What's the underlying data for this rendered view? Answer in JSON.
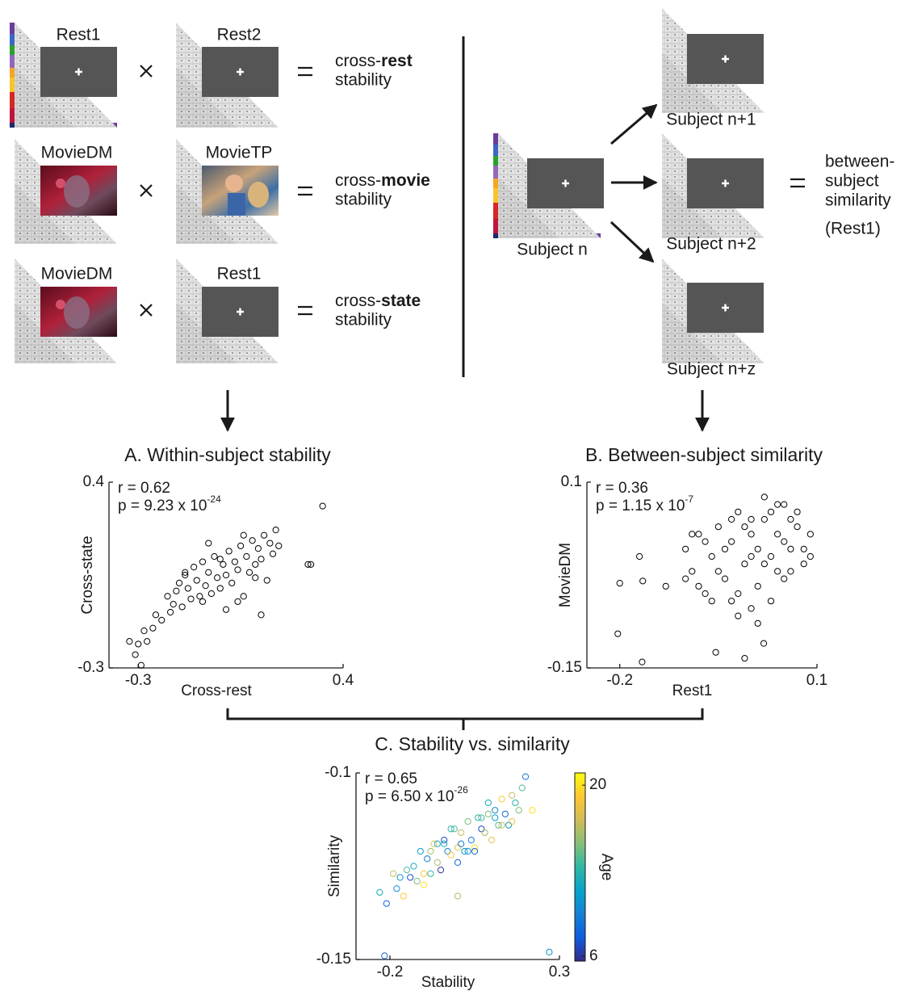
{
  "diagram": {
    "rows": [
      {
        "left": "Rest1",
        "right": "Rest2",
        "result": {
          "prefix": "cross-",
          "bold": "rest",
          "suffix": "stability"
        }
      },
      {
        "left": "MovieDM",
        "right": "MovieTP",
        "result": {
          "prefix": "cross-",
          "bold": "movie",
          "suffix": "stability"
        }
      },
      {
        "left": "MovieDM",
        "right": "Rest1",
        "result": {
          "prefix": "cross-",
          "bold": "state",
          "suffix": "stability"
        }
      }
    ],
    "between": {
      "center": "Subject n",
      "targets": [
        "Subject n+1",
        "Subject n+2",
        "Subject n+z"
      ],
      "result": [
        "between-",
        "subject",
        "similarity",
        "(Rest1)"
      ]
    }
  },
  "chart_data": [
    {
      "type": "scatter",
      "title": "A. Within-subject stability",
      "xlabel": "Cross-rest",
      "ylabel": "Cross-state",
      "annotation": {
        "r": "r = 0.62",
        "p": "p = 9.23 x 10",
        "p_exp": "-24"
      },
      "xlim": [
        -0.4,
        0.4
      ],
      "xticks": [
        -0.3,
        0.4
      ],
      "ylim": [
        -0.3,
        0.4
      ],
      "yticks": [
        -0.3,
        0.4
      ],
      "color": "#000000",
      "x": [
        -0.33,
        -0.31,
        -0.3,
        -0.28,
        -0.27,
        -0.25,
        -0.24,
        -0.22,
        -0.2,
        -0.19,
        -0.18,
        -0.17,
        -0.16,
        -0.15,
        -0.14,
        -0.13,
        -0.12,
        -0.11,
        -0.1,
        -0.09,
        -0.08,
        -0.07,
        -0.06,
        -0.05,
        -0.04,
        -0.03,
        -0.02,
        -0.01,
        0,
        0.01,
        0.02,
        0.03,
        0.04,
        0.05,
        0.06,
        0.07,
        0.08,
        0.09,
        0.1,
        0.11,
        0.12,
        0.13,
        0.14,
        0.15,
        0.16,
        0.17,
        0.18,
        -0.14,
        -0.08,
        -0.02,
        0.04,
        0.1,
        -0.06,
        0.0,
        0.06,
        0.12,
        0.28,
        0.29,
        0.33,
        -0.29
      ],
      "values": [
        -0.2,
        -0.25,
        -0.21,
        -0.16,
        -0.2,
        -0.15,
        -0.1,
        -0.12,
        -0.03,
        -0.09,
        -0.06,
        -0.01,
        0.02,
        -0.07,
        0.05,
        0.0,
        -0.04,
        0.08,
        0.03,
        -0.03,
        0.1,
        0.01,
        0.06,
        -0.02,
        0.12,
        0.04,
        0.0,
        0.09,
        0.05,
        0.14,
        0.02,
        0.1,
        0.07,
        0.16,
        -0.03,
        0.12,
        0.06,
        0.18,
        0.09,
        0.15,
        0.11,
        0.2,
        0.03,
        0.17,
        0.13,
        0.22,
        0.16,
        0.06,
        -0.05,
        0.11,
        -0.05,
        0.04,
        0.17,
        -0.08,
        0.2,
        -0.1,
        0.09,
        0.09,
        0.31,
        -0.29
      ]
    },
    {
      "type": "scatter",
      "title": "B. Between-subject similarity",
      "xlabel": "Rest1",
      "ylabel": "MovieDM",
      "annotation": {
        "r": "r = 0.36",
        "p": "p = 1.15 x 10",
        "p_exp": "-7"
      },
      "xlim": [
        -0.25,
        0.1
      ],
      "xticks": [
        -0.2,
        0.1
      ],
      "ylim": [
        -0.15,
        0.1
      ],
      "yticks": [
        -0.15,
        0.1
      ],
      "color": "#000000",
      "x": [
        -0.1,
        -0.09,
        -0.08,
        -0.07,
        -0.06,
        -0.05,
        -0.04,
        -0.03,
        -0.02,
        -0.01,
        0,
        0.01,
        0.02,
        0.03,
        0.04,
        0.05,
        0.06,
        0.07,
        0.08,
        0.09,
        -0.09,
        -0.07,
        -0.05,
        -0.03,
        -0.01,
        0.01,
        0.03,
        0.05,
        0.07,
        0.09,
        -0.08,
        -0.06,
        -0.04,
        -0.02,
        0,
        0.02,
        0.04,
        0.06,
        0.08,
        -0.1,
        -0.02,
        0,
        0.01,
        -0.03,
        0.02,
        0.05,
        0.03,
        0.0,
        0.04,
        0.06,
        -0.203,
        -0.17,
        -0.165,
        -0.2,
        -0.13,
        -0.166,
        -0.054,
        -0.01,
        0.019
      ],
      "values": [
        0.01,
        -0.02,
        0.03,
        -0.05,
        0.0,
        0.04,
        -0.03,
        0.02,
        0.06,
        -0.01,
        0.03,
        -0.04,
        0.05,
        0.0,
        0.07,
        0.02,
        -0.02,
        0.04,
        0.01,
        0.03,
        0.03,
        0.02,
        -0.02,
        0.05,
        0.04,
        0.01,
        0.06,
        -0.03,
        0.06,
        0.0,
        -0.04,
        -0.06,
        0.01,
        -0.05,
        0.0,
        -0.01,
        0.03,
        0.05,
        -0.01,
        -0.03,
        -0.08,
        -0.07,
        -0.09,
        -0.06,
        0.08,
        0.07,
        -0.06,
        0.05,
        -0.02,
        0.01,
        -0.104,
        0.0,
        -0.033,
        -0.036,
        -0.04,
        -0.142,
        -0.129,
        -0.137,
        -0.117
      ]
    },
    {
      "type": "scatter",
      "title": "C. Stability vs. similarity",
      "xlabel": "Stability",
      "ylabel": "Similarity",
      "annotation": {
        "r": "r = 0.65",
        "p": "p = 6.50 x 10",
        "p_exp": "-26"
      },
      "xlim": [
        -0.3,
        0.3
      ],
      "xticks": [
        -0.2,
        0.3
      ],
      "ylim": [
        -0.15,
        -0.1
      ],
      "yticks": [
        -0.15,
        -0.1
      ],
      "colormap": [
        "#352a87",
        "#0f5cdd",
        "#1481d6",
        "#06a4ca",
        "#2eb7a4",
        "#87bf77",
        "#d1bb59",
        "#fec832",
        "#f9fb0e"
      ],
      "colorbar": {
        "label": "Age",
        "lim": [
          5.6,
          21
        ],
        "ticks": [
          6,
          20
        ]
      },
      "x": [
        -0.23,
        -0.21,
        -0.19,
        -0.18,
        -0.16,
        -0.15,
        -0.14,
        -0.12,
        -0.11,
        -0.1,
        -0.09,
        -0.08,
        -0.07,
        -0.06,
        -0.05,
        -0.04,
        -0.03,
        -0.02,
        -0.01,
        0,
        0.01,
        0.02,
        0.03,
        0.04,
        0.05,
        0.06,
        0.07,
        0.08,
        0.09,
        0.1,
        0.11,
        0.12,
        0.13,
        0.14,
        0.15,
        0.16,
        0.17,
        0.18,
        0.2,
        0.22,
        -0.13,
        -0.08,
        -0.04,
        0.0,
        0.03,
        0.07,
        0.11,
        -0.1,
        -0.02,
        0.05,
        0.09,
        0.13,
        -0.06,
        0.01,
        0.0,
        0.27,
        -0.216,
        0.16,
        0.19,
        -0.17
      ],
      "values": [
        -0.132,
        -0.135,
        -0.127,
        -0.131,
        -0.133,
        -0.126,
        -0.128,
        -0.129,
        -0.121,
        -0.13,
        -0.123,
        -0.127,
        -0.119,
        -0.124,
        -0.126,
        -0.119,
        -0.121,
        -0.122,
        -0.115,
        -0.124,
        -0.116,
        -0.121,
        -0.113,
        -0.118,
        -0.12,
        -0.112,
        -0.115,
        -0.116,
        -0.108,
        -0.118,
        -0.11,
        -0.114,
        -0.107,
        -0.111,
        -0.114,
        -0.106,
        -0.108,
        -0.11,
        -0.101,
        -0.11,
        -0.125,
        -0.121,
        -0.118,
        -0.12,
        -0.121,
        -0.112,
        -0.112,
        -0.127,
        -0.115,
        -0.121,
        -0.111,
        -0.114,
        -0.119,
        -0.119,
        -0.133,
        -0.148,
        -0.149,
        -0.113,
        -0.104,
        -0.128
      ],
      "c": [
        12,
        8,
        17,
        10,
        19,
        14,
        7,
        15,
        11,
        20,
        9,
        13,
        18,
        16,
        6,
        12,
        10,
        19,
        14,
        8,
        17,
        11,
        15,
        9,
        20,
        13,
        7,
        16,
        12,
        18,
        10,
        14,
        19,
        8,
        11,
        17,
        13,
        15,
        9,
        20,
        12,
        16,
        7,
        18,
        10,
        14,
        11,
        19,
        13,
        8,
        15,
        17,
        12,
        9,
        16,
        10,
        8,
        18,
        14,
        11
      ]
    }
  ]
}
